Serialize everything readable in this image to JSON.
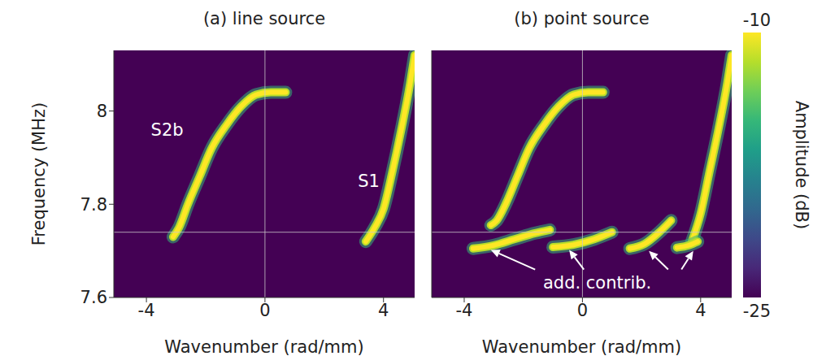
{
  "chart_data": [
    {
      "type": "line",
      "title": "(a) line source",
      "x_label": "Wavenumber (rad/mm)",
      "y_label": "Frequency (MHz)",
      "xlim": [
        -5.1,
        5.05
      ],
      "ylim": [
        7.6,
        8.13
      ],
      "xticks": [
        -4,
        0,
        4
      ],
      "yticks": [
        7.6,
        7.8,
        8
      ],
      "grid": false,
      "reference_lines": {
        "x": [
          0
        ],
        "y": [
          7.74
        ]
      },
      "series": [
        {
          "color": "#fde725",
          "x": [
            -3.1,
            -2.9,
            -2.6,
            -2.2,
            -1.8,
            -1.3,
            -0.8,
            -0.3,
            0.2,
            0.7
          ],
          "values": [
            7.73,
            7.75,
            7.8,
            7.86,
            7.92,
            7.97,
            8.01,
            8.035,
            8.04,
            8.04
          ]
        },
        {
          "color": "#fde725",
          "x": [
            3.4,
            3.7,
            4.0,
            4.3,
            4.6,
            4.9,
            5.05
          ],
          "values": [
            7.72,
            7.75,
            7.79,
            7.87,
            7.96,
            8.06,
            8.12
          ]
        }
      ],
      "annotations": [
        {
          "text": "S2b",
          "x": -3.3,
          "y": 7.96
        },
        {
          "text": "S1",
          "x": 3.5,
          "y": 7.85
        }
      ]
    },
    {
      "type": "line",
      "title": "(b) point source",
      "x_label": "Wavenumber (rad/mm)",
      "xlim": [
        -5.1,
        5.05
      ],
      "ylim": [
        7.6,
        8.13
      ],
      "xticks": [
        -4,
        0,
        4
      ],
      "yticks": [
        7.6,
        7.8,
        8
      ],
      "grid": false,
      "tick_labels": "x",
      "reference_lines": {
        "x": [
          0
        ],
        "y": [
          7.74
        ]
      },
      "series": [
        {
          "color": "#fde725",
          "x": [
            -3.1,
            -2.9,
            -2.6,
            -2.2,
            -1.8,
            -1.3,
            -0.8,
            -0.3,
            0.2,
            0.7
          ],
          "values": [
            7.755,
            7.765,
            7.8,
            7.86,
            7.92,
            7.97,
            8.01,
            8.035,
            8.04,
            8.04
          ]
        },
        {
          "color": "#fde725",
          "x": [
            3.7,
            4.0,
            4.3,
            4.6,
            4.9,
            5.05
          ],
          "values": [
            7.72,
            7.78,
            7.87,
            7.96,
            8.06,
            8.12
          ]
        },
        {
          "color": "#fde725",
          "x": [
            -3.7,
            -3.0,
            -2.3,
            -1.6,
            -1.1
          ],
          "values": [
            7.705,
            7.712,
            7.725,
            7.738,
            7.745
          ]
        },
        {
          "color": "#fde725",
          "x": [
            -1.0,
            -0.3,
            0.4,
            1.0
          ],
          "values": [
            7.708,
            7.713,
            7.725,
            7.74
          ]
        },
        {
          "color": "#fde725",
          "x": [
            1.6,
            2.1,
            2.6,
            3.0
          ],
          "values": [
            7.705,
            7.715,
            7.74,
            7.765
          ]
        },
        {
          "color": "#fde725",
          "x": [
            3.2,
            3.6,
            3.9
          ],
          "values": [
            7.707,
            7.712,
            7.72
          ]
        }
      ],
      "annotations": [
        {
          "text": "add. contrib.",
          "x": 0.5,
          "y": 7.632,
          "arrows": [
            {
              "from": [
                -1.6,
                7.66
              ],
              "to": [
                -3.1,
                7.702
              ]
            },
            {
              "from": [
                0.05,
                7.66
              ],
              "to": [
                -0.45,
                7.702
              ]
            },
            {
              "from": [
                2.9,
                7.66
              ],
              "to": [
                2.25,
                7.7
              ]
            },
            {
              "from": [
                3.35,
                7.66
              ],
              "to": [
                3.75,
                7.7
              ]
            }
          ]
        }
      ],
      "colorbar": {
        "range": [
          -25,
          -10
        ],
        "ticks": [
          -25,
          -10
        ],
        "label": "Amplitude (dB)"
      }
    }
  ]
}
